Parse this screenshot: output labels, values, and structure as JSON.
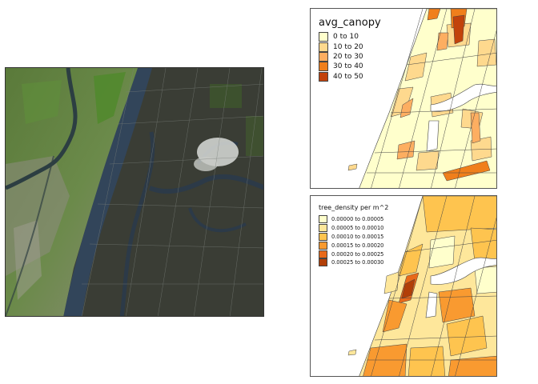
{
  "maps": {
    "satellite": {
      "description": "Satellite basemap of northern Manhattan, the Bronx and the New Jersey Palisades with neighborhood boundaries"
    },
    "canopy": {
      "legend_title": "avg_canopy",
      "classes": [
        {
          "label": "0 to 10",
          "color": "#ffffcc"
        },
        {
          "label": "10 to 20",
          "color": "#fed98e"
        },
        {
          "label": "20 to 30",
          "color": "#fdae61"
        },
        {
          "label": "30 to 40",
          "color": "#f07f1b"
        },
        {
          "label": "40 to 50",
          "color": "#c2420b"
        }
      ]
    },
    "density": {
      "legend_title": "tree_density per m^2",
      "classes": [
        {
          "label": "0.00000 to 0.00005",
          "color": "#ffffcc"
        },
        {
          "label": "0.00005 to 0.00010",
          "color": "#fee79b"
        },
        {
          "label": "0.00010 to 0.00015",
          "color": "#fec44f"
        },
        {
          "label": "0.00015 to 0.00020",
          "color": "#f99a30"
        },
        {
          "label": "0.00020 to 0.00025",
          "color": "#e8691a"
        },
        {
          "label": "0.00025 to 0.00030",
          "color": "#b23f08"
        }
      ]
    },
    "water_color": "#ffffff"
  }
}
